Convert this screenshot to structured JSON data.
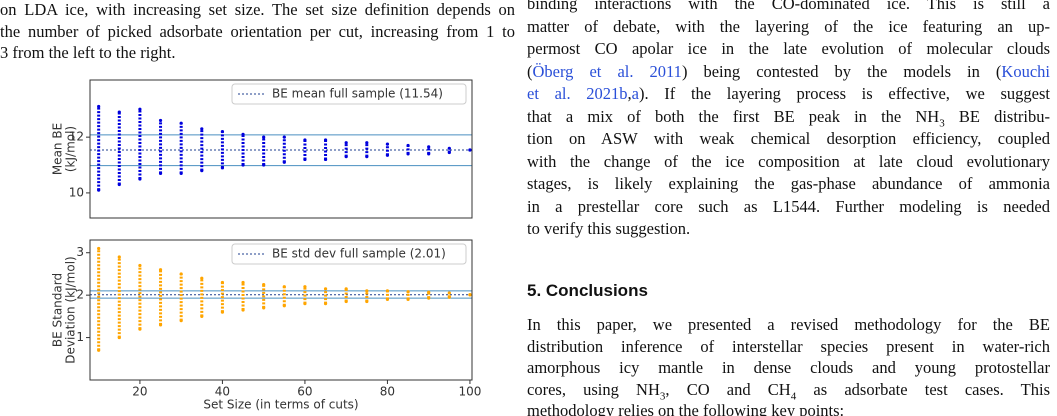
{
  "left_text": {
    "lines": [
      "on LDA ice, with increasing set size. The set size definition depends on",
      "the number of picked adsorbate orientation per cut, increasing from 1 to",
      "3 from the left to the right."
    ]
  },
  "chart_data": [
    {
      "type": "strip",
      "ylabel": [
        "Mean BE",
        "(kJ/mol)"
      ],
      "color": "#0000dd",
      "x": [
        10,
        15,
        20,
        25,
        30,
        35,
        40,
        45,
        50,
        55,
        60,
        65,
        70,
        75,
        80,
        85,
        90,
        95,
        100
      ],
      "min": [
        10.1,
        10.3,
        10.5,
        10.7,
        10.7,
        10.8,
        10.9,
        11.0,
        11.0,
        11.1,
        11.2,
        11.2,
        11.3,
        11.3,
        11.35,
        11.4,
        11.4,
        11.45,
        11.54
      ],
      "max": [
        13.1,
        12.9,
        13.0,
        12.6,
        12.5,
        12.3,
        12.2,
        12.1,
        12.0,
        12.0,
        11.9,
        11.9,
        11.8,
        11.8,
        11.75,
        11.7,
        11.65,
        11.6,
        11.54
      ],
      "xlim": [
        7.9,
        100.5
      ],
      "ylim": [
        9.1,
        14.05
      ],
      "yticks": [
        10,
        12
      ],
      "mean_line": {
        "label": "BE mean full sample (11.54)",
        "value": 11.54,
        "color": "#1f3f8f"
      },
      "reference_lines": [
        10.98,
        12.08
      ],
      "reference_color": "#4a8fc0"
    },
    {
      "type": "strip",
      "ylabel": [
        "BE Standard",
        "Deviation (kJ/mol)"
      ],
      "xlabel": "Set Size (in terms of cuts)",
      "color": "#ffa500",
      "x": [
        10,
        15,
        20,
        25,
        30,
        35,
        40,
        45,
        50,
        55,
        60,
        65,
        70,
        75,
        80,
        85,
        90,
        95,
        100
      ],
      "min": [
        0.7,
        1.0,
        1.2,
        1.3,
        1.4,
        1.5,
        1.6,
        1.65,
        1.7,
        1.75,
        1.8,
        1.8,
        1.85,
        1.85,
        1.9,
        1.9,
        1.93,
        1.95,
        2.01
      ],
      "max": [
        3.1,
        2.9,
        2.7,
        2.6,
        2.5,
        2.4,
        2.3,
        2.3,
        2.25,
        2.2,
        2.2,
        2.15,
        2.15,
        2.1,
        2.1,
        2.08,
        2.07,
        2.05,
        2.01
      ],
      "xlim": [
        7.9,
        100.5
      ],
      "xticks": [
        20,
        40,
        60,
        80,
        100
      ],
      "ylim": [
        0.0,
        3.3
      ],
      "yticks": [
        1,
        2,
        3
      ],
      "mean_line": {
        "label": "BE std dev full sample (2.01)",
        "value": 2.01,
        "color": "#1f3f8f"
      },
      "reference_lines": [
        1.93,
        2.1
      ],
      "reference_color": "#4a8fc0"
    }
  ],
  "right_text": {
    "paragraph1": [
      [
        "binding interactions with the CO-dominated ice. This is still a"
      ],
      [
        "matter of debate, with the layering of the ice featuring an up-"
      ],
      [
        "permost CO apolar ice in the late evolution of molecular clouds"
      ],
      [
        "(",
        {
          "link": "Öberg et al. 2011"
        },
        ") being contested by the models in (",
        {
          "link": "Kouchi"
        }
      ],
      [
        {
          "link": "et al. 2021b"
        },
        ",",
        {
          "link": "a"
        },
        "). If the layering process is effective, we suggest"
      ],
      [
        "that a mix of both the first BE peak in the NH",
        {
          "sub": "3"
        },
        " BE distribu-"
      ],
      [
        "tion on ASW with weak chemical desorption efficiency, coupled"
      ],
      [
        "with the change of the ice composition at late cloud evolutionary"
      ],
      [
        "stages, is likely explaining the gas-phase abundance of ammonia"
      ],
      [
        "in a prestellar core such as L1544. Further modeling is needed"
      ],
      [
        "to verify this suggestion."
      ]
    ],
    "heading": "5. Conclusions",
    "paragraph2": [
      [
        "In this paper, we presented a revised methodology for the BE"
      ],
      [
        "distribution inference of interstellar species present in water-rich"
      ],
      [
        "amorphous icy mantle in dense clouds and young protostellar"
      ],
      [
        "cores, using NH",
        {
          "sub": "3"
        },
        ", CO and CH",
        {
          "sub": "4"
        },
        " as adsorbate test cases. This"
      ],
      [
        "methodology relies on the following key points:"
      ]
    ]
  }
}
